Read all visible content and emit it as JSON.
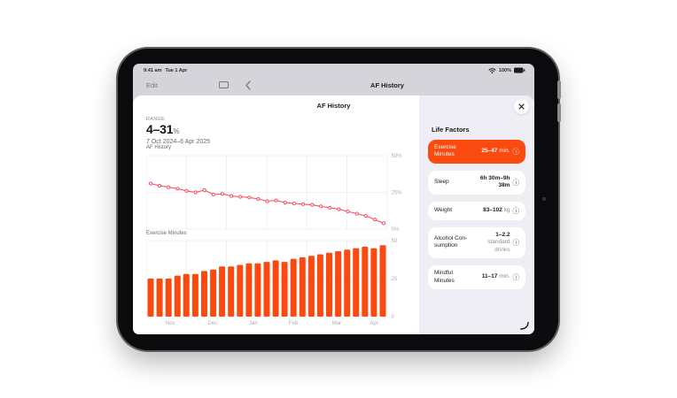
{
  "device": {
    "status_bar": {
      "time": "9:41 am",
      "date": "Tue 1 Apr",
      "battery": "100%"
    },
    "nav": {
      "edit_label": "Edit",
      "title": "AF History"
    }
  },
  "modal": {
    "title": "AF History",
    "range_label": "RANGE",
    "range_value": "4–31",
    "range_unit": "%",
    "date_range": "7 Oct 2024–6 Apr 2025"
  },
  "life_factors": {
    "title": "Life Factors",
    "info_icon": "ⓘ",
    "items": [
      {
        "name": "Exercise Minutes",
        "value": "25–47",
        "unit": "min.",
        "selected": true
      },
      {
        "name": "Sleep",
        "value": "6h 30m–9h 38m",
        "unit": "",
        "selected": false
      },
      {
        "name": "Weight",
        "value": "83–102",
        "unit": "kg",
        "selected": false
      },
      {
        "name": "Alcohol Con-\nsumption",
        "value": "1–2.2",
        "unit": "standard drinks",
        "selected": false
      },
      {
        "name": "Mindful Minutes",
        "value": "11–17",
        "unit": "min.",
        "selected": false
      }
    ]
  },
  "chart_data": [
    {
      "type": "line",
      "title": "AF History",
      "ylabel": "AF History (%)",
      "ylim": [
        0,
        50
      ],
      "yticks": [
        "0%",
        "25%",
        "50%"
      ],
      "grid": true,
      "tick_side": "right",
      "line_color": "#fc4e5f",
      "values": [
        31,
        29.5,
        28.5,
        27.5,
        26,
        25,
        26.5,
        23.5,
        24,
        22.5,
        22,
        21.5,
        20.5,
        19,
        19.5,
        18,
        17.5,
        17,
        16.5,
        15.5,
        14.5,
        13.5,
        12,
        10.5,
        9,
        6.5,
        4
      ]
    },
    {
      "type": "bar",
      "title": "Exercise Minutes",
      "ylabel": "Exercise Minutes (min)",
      "ylim": [
        0,
        50
      ],
      "yticks": [
        "0",
        "25",
        "50"
      ],
      "grid": true,
      "tick_side": "right",
      "bar_color": "#fa4a10",
      "month_labels": [
        "Nov",
        "Dec",
        "Jan",
        "Feb",
        "Mar",
        "Apr"
      ],
      "month_fractions": [
        0.1,
        0.275,
        0.445,
        0.61,
        0.79,
        0.945
      ],
      "values": [
        25,
        25,
        25,
        27,
        28,
        28,
        30,
        31,
        33,
        33,
        34,
        35,
        35,
        36,
        37,
        36,
        38,
        39,
        40,
        41,
        42,
        43,
        44,
        45,
        46,
        45,
        47
      ]
    }
  ],
  "colors": {
    "accent_orange": "#fa4a10",
    "line_pink": "#fc4e5f",
    "grid": "#ececef",
    "tick_text": "#aeaeb2"
  }
}
